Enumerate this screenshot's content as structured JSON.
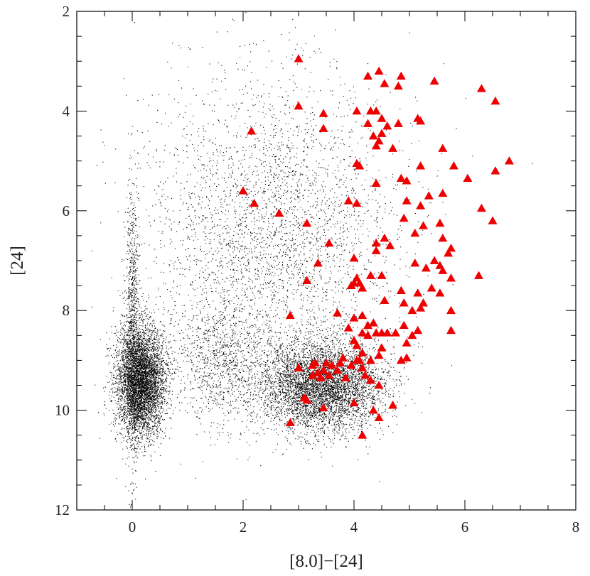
{
  "chart_data": {
    "type": "scatter",
    "title": "",
    "xlabel": "[8.0]−[24]",
    "ylabel": "[24]",
    "xlim": [
      -1,
      8
    ],
    "ylim": [
      12,
      2
    ],
    "y_inverted": true,
    "grid": false,
    "x_ticks": [
      {
        "value": 0,
        "label": "0"
      },
      {
        "value": 2,
        "label": "2"
      },
      {
        "value": 4,
        "label": "4"
      },
      {
        "value": 6,
        "label": "6"
      },
      {
        "value": 8,
        "label": "8"
      }
    ],
    "y_ticks": [
      {
        "value": 2,
        "label": "2"
      },
      {
        "value": 4,
        "label": "4"
      },
      {
        "value": 6,
        "label": "6"
      },
      {
        "value": 8,
        "label": "8"
      },
      {
        "value": 10,
        "label": "10"
      },
      {
        "value": 12,
        "label": "12"
      }
    ],
    "background_population": {
      "marker": "dot",
      "color": "#000000",
      "clusters": [
        {
          "center": [
            0.15,
            9.4
          ],
          "spread": [
            0.22,
            0.55
          ]
        },
        {
          "center": [
            0.0,
            8.3
          ],
          "spread": [
            0.06,
            1.4
          ]
        },
        {
          "center": [
            3.4,
            9.5
          ],
          "spread": [
            0.55,
            0.45
          ]
        },
        {
          "center": [
            2.5,
            6.5
          ],
          "spread": [
            1.1,
            1.6
          ]
        },
        {
          "center": [
            1.6,
            9.0
          ],
          "spread": [
            0.4,
            0.6
          ]
        }
      ]
    },
    "series": [
      {
        "marker": "triangle",
        "color": "#ee0000",
        "points": [
          [
            3.0,
            2.95
          ],
          [
            4.45,
            3.2
          ],
          [
            4.25,
            3.3
          ],
          [
            4.85,
            3.3
          ],
          [
            5.45,
            3.4
          ],
          [
            4.55,
            3.45
          ],
          [
            4.8,
            3.5
          ],
          [
            6.3,
            3.55
          ],
          [
            6.55,
            3.8
          ],
          [
            3.0,
            3.9
          ],
          [
            3.45,
            4.05
          ],
          [
            4.3,
            4.0
          ],
          [
            4.4,
            4.0
          ],
          [
            4.05,
            4.0
          ],
          [
            4.5,
            4.15
          ],
          [
            5.15,
            4.15
          ],
          [
            5.2,
            4.2
          ],
          [
            4.8,
            4.25
          ],
          [
            4.25,
            4.25
          ],
          [
            4.6,
            4.3
          ],
          [
            3.45,
            4.35
          ],
          [
            2.15,
            4.4
          ],
          [
            4.5,
            4.45
          ],
          [
            4.35,
            4.5
          ],
          [
            4.45,
            4.6
          ],
          [
            4.4,
            4.7
          ],
          [
            4.7,
            4.75
          ],
          [
            5.6,
            4.75
          ],
          [
            6.8,
            5.0
          ],
          [
            4.05,
            5.05
          ],
          [
            4.1,
            5.1
          ],
          [
            5.2,
            5.1
          ],
          [
            5.8,
            5.1
          ],
          [
            4.85,
            5.35
          ],
          [
            4.95,
            5.4
          ],
          [
            4.4,
            5.45
          ],
          [
            6.55,
            5.2
          ],
          [
            6.05,
            5.35
          ],
          [
            2.0,
            5.6
          ],
          [
            5.6,
            5.65
          ],
          [
            5.35,
            5.7
          ],
          [
            4.95,
            5.8
          ],
          [
            2.2,
            5.85
          ],
          [
            3.9,
            5.8
          ],
          [
            4.05,
            5.85
          ],
          [
            5.2,
            5.9
          ],
          [
            6.3,
            5.95
          ],
          [
            2.65,
            6.05
          ],
          [
            4.9,
            6.15
          ],
          [
            3.15,
            6.25
          ],
          [
            5.25,
            6.3
          ],
          [
            5.55,
            6.25
          ],
          [
            6.5,
            6.2
          ],
          [
            5.1,
            6.45
          ],
          [
            4.55,
            6.55
          ],
          [
            5.6,
            6.55
          ],
          [
            3.55,
            6.65
          ],
          [
            4.4,
            6.65
          ],
          [
            4.65,
            6.7
          ],
          [
            5.75,
            6.75
          ],
          [
            4.4,
            6.8
          ],
          [
            5.7,
            6.85
          ],
          [
            4.0,
            6.95
          ],
          [
            5.45,
            7.0
          ],
          [
            5.1,
            7.05
          ],
          [
            5.55,
            7.1
          ],
          [
            3.35,
            7.05
          ],
          [
            5.3,
            7.15
          ],
          [
            5.6,
            7.2
          ],
          [
            4.5,
            7.3
          ],
          [
            4.3,
            7.3
          ],
          [
            6.25,
            7.3
          ],
          [
            4.05,
            7.35
          ],
          [
            5.75,
            7.35
          ],
          [
            3.15,
            7.4
          ],
          [
            4.0,
            7.45
          ],
          [
            4.1,
            7.45
          ],
          [
            3.95,
            7.5
          ],
          [
            4.15,
            7.55
          ],
          [
            4.85,
            7.6
          ],
          [
            5.15,
            7.65
          ],
          [
            5.4,
            7.55
          ],
          [
            5.55,
            7.65
          ],
          [
            4.55,
            7.8
          ],
          [
            4.9,
            7.85
          ],
          [
            5.25,
            7.85
          ],
          [
            5.2,
            7.95
          ],
          [
            5.05,
            8.0
          ],
          [
            5.75,
            8.0
          ],
          [
            3.7,
            8.05
          ],
          [
            2.85,
            8.1
          ],
          [
            4.15,
            8.1
          ],
          [
            4.0,
            8.15
          ],
          [
            4.35,
            8.25
          ],
          [
            4.25,
            8.3
          ],
          [
            4.9,
            8.3
          ],
          [
            3.9,
            8.35
          ],
          [
            5.15,
            8.4
          ],
          [
            5.75,
            8.4
          ],
          [
            4.5,
            8.45
          ],
          [
            4.6,
            8.45
          ],
          [
            4.15,
            8.45
          ],
          [
            4.4,
            8.45
          ],
          [
            4.75,
            8.45
          ],
          [
            5.05,
            8.5
          ],
          [
            4.25,
            8.5
          ],
          [
            4.0,
            8.6
          ],
          [
            4.95,
            8.65
          ],
          [
            4.05,
            8.7
          ],
          [
            4.5,
            8.75
          ],
          [
            4.15,
            8.85
          ],
          [
            4.45,
            8.9
          ],
          [
            3.8,
            8.95
          ],
          [
            4.95,
            8.95
          ],
          [
            4.05,
            9.0
          ],
          [
            4.3,
            9.0
          ],
          [
            4.1,
            9.0
          ],
          [
            4.85,
            9.0
          ],
          [
            3.3,
            9.05
          ],
          [
            3.5,
            9.05
          ],
          [
            3.75,
            9.05
          ],
          [
            3.25,
            9.1
          ],
          [
            3.6,
            9.1
          ],
          [
            3.95,
            9.1
          ],
          [
            3.0,
            9.15
          ],
          [
            4.15,
            9.15
          ],
          [
            3.45,
            9.2
          ],
          [
            3.7,
            9.2
          ],
          [
            3.35,
            9.25
          ],
          [
            3.55,
            9.3
          ],
          [
            3.4,
            9.35
          ],
          [
            3.25,
            9.3
          ],
          [
            4.2,
            9.3
          ],
          [
            3.85,
            9.35
          ],
          [
            4.3,
            9.4
          ],
          [
            4.45,
            9.5
          ],
          [
            3.1,
            9.75
          ],
          [
            3.15,
            9.8
          ],
          [
            4.0,
            9.85
          ],
          [
            4.7,
            9.9
          ],
          [
            3.45,
            9.95
          ],
          [
            4.35,
            10.0
          ],
          [
            4.45,
            10.15
          ],
          [
            2.85,
            10.25
          ],
          [
            4.15,
            10.5
          ]
        ]
      }
    ]
  }
}
